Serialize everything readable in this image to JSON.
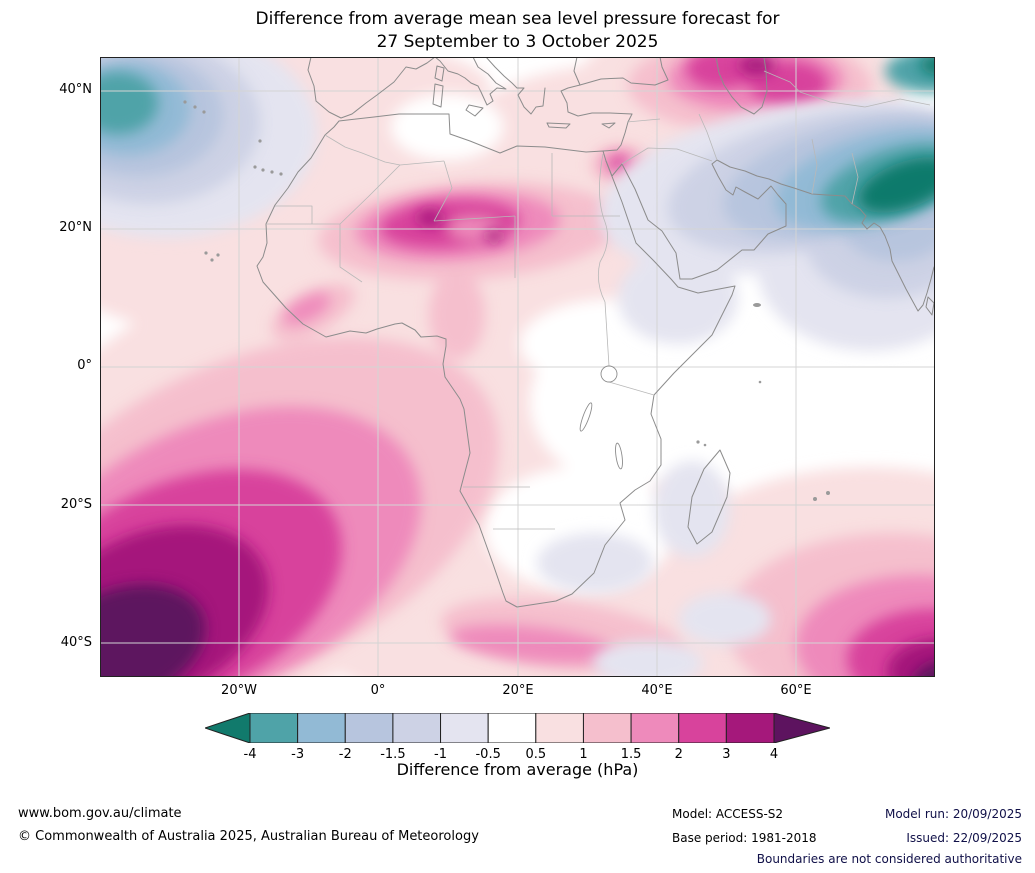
{
  "title": {
    "line1": "Difference from average mean sea level pressure forecast for",
    "line2": "27 September to 3 October 2025"
  },
  "axes": {
    "lat_ticks": [
      "40°N",
      "20°N",
      "0°",
      "20°S",
      "40°S"
    ],
    "lon_ticks": [
      "20°W",
      "0°",
      "20°E",
      "40°E",
      "60°E"
    ]
  },
  "colorbar": {
    "label": "Difference from average (hPa)",
    "tick_labels": [
      "-4",
      "-3",
      "-2",
      "-1.5",
      "-1",
      "-0.5",
      "0.5",
      "1",
      "1.5",
      "2",
      "3",
      "4"
    ],
    "colors": [
      "#117a6c",
      "#4fa3a8",
      "#92bad5",
      "#b7c5de",
      "#cdd2e5",
      "#e4e4f0",
      "#ffffff",
      "#f9e0e1",
      "#f5bfcd",
      "#ee8abb",
      "#d8439c",
      "#a5187b",
      "#5d135f"
    ]
  },
  "footer": {
    "website": "www.bom.gov.au/climate",
    "copyright": "© Commonwealth of Australia 2025, Australian Bureau of Meteorology",
    "model_label": "Model: ACCESS-S2",
    "base_period_label": "Base period: 1981-2018",
    "model_run_label": "Model run: 20/09/2025",
    "issued_label": "Issued: 22/09/2025",
    "disclaimer": "Boundaries are not considered authoritative"
  },
  "chart_data": {
    "type": "heatmap",
    "subtype": "filled-contour anomaly map",
    "title": "Difference from average mean sea level pressure forecast for 27 September to 3 October 2025",
    "variable": "Mean sea level pressure difference from average",
    "units": "hPa",
    "region": {
      "lon_range": [
        "40°W",
        "80°E"
      ],
      "lat_range": [
        "45°S",
        "45°N"
      ],
      "area": "Africa, southern Europe, Middle East, Indian subcontinent and surrounding oceans"
    },
    "contour_levels_hpa": [
      -4,
      -3,
      -2,
      -1.5,
      -1,
      -0.5,
      0.5,
      1,
      1.5,
      2,
      3,
      4
    ],
    "palette": [
      "#117a6c",
      "#4fa3a8",
      "#92bad5",
      "#b7c5de",
      "#cdd2e5",
      "#e4e4f0",
      "#ffffff",
      "#f9e0e1",
      "#f5bfcd",
      "#ee8abb",
      "#d8439c",
      "#a5187b",
      "#5d135f"
    ],
    "colorbar_extends_both_ends": true,
    "grid": true,
    "features": [
      {
        "region": "South Atlantic, southwest of southern Africa",
        "anomaly_hpa": "greater than +4",
        "description": "large strong positive core in bottom-left of map"
      },
      {
        "region": "Southern Indian Ocean, bottom-right corner",
        "anomaly_hpa": "+3 to greater than +4",
        "description": "second strong positive core"
      },
      {
        "region": "Central Sahara (about 15-25N, 5-25E)",
        "anomaly_hpa": "+2 to +3",
        "description": "magenta core within broad pink band across North Africa"
      },
      {
        "region": "Eastern Europe / Black Sea",
        "anomaly_hpa": "+2 to +3",
        "description": "positive cores at top of map"
      },
      {
        "region": "Levant / eastern Mediterranean",
        "anomaly_hpa": "+0.5 to +2",
        "description": "small positive patch near Cyprus and Egypt coast"
      },
      {
        "region": "South African south coast",
        "anomaly_hpa": "+1 to +2",
        "description": "pink band along the coast"
      },
      {
        "region": "Northern India / Himalayan region",
        "anomaly_hpa": "less than -4",
        "description": "strong negative core at top-right"
      },
      {
        "region": "Arabian Peninsula to Pakistan band",
        "anomaly_hpa": "-0.5 to -3",
        "description": "broad negative band across the Middle East"
      },
      {
        "region": "North Atlantic, top-left corner",
        "anomaly_hpa": "-2 to -4",
        "description": "negative blob"
      },
      {
        "region": "Horn of Africa",
        "anomaly_hpa": "-1 to -0.5"
      },
      {
        "region": "Madagascar and southern Africa interior patches",
        "anomaly_hpa": "-1 to -0.5"
      },
      {
        "region": "Equatorial and central Africa interior",
        "anomaly_hpa": "-0.5 to +0.5",
        "description": "near average (white)"
      }
    ]
  }
}
